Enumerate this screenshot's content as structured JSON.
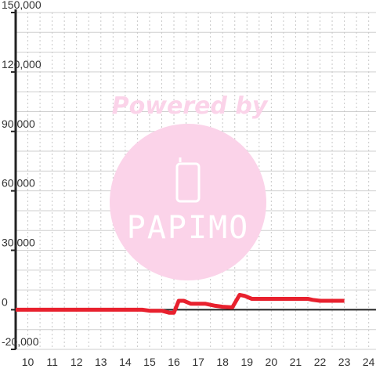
{
  "chart_data": {
    "type": "line",
    "title": "",
    "xlabel": "",
    "ylabel": "",
    "xlim": [
      9.5,
      24.3
    ],
    "ylim": [
      -20000,
      150000
    ],
    "x_ticks": [
      10,
      11,
      12,
      13,
      14,
      15,
      16,
      17,
      18,
      19,
      20,
      21,
      22,
      23,
      24
    ],
    "y_ticks": [
      -20000,
      0,
      30000,
      60000,
      90000,
      120000,
      150000
    ],
    "y_tick_labels": [
      "-20,000",
      "0",
      "30,000",
      "60,000",
      "90,000",
      "120,000",
      "150,000"
    ],
    "grid": {
      "vertical": "dotted",
      "horizontal": "solid"
    },
    "legend": "none",
    "series": [
      {
        "color": "#e8212e",
        "points": [
          [
            9.5,
            0
          ],
          [
            10,
            0
          ],
          [
            11,
            0
          ],
          [
            12,
            0
          ],
          [
            13,
            0
          ],
          [
            14,
            0
          ],
          [
            14.7,
            0
          ],
          [
            15.0,
            -500
          ],
          [
            15.5,
            -500
          ],
          [
            15.8,
            -1500
          ],
          [
            16.0,
            -1500
          ],
          [
            16.2,
            4500
          ],
          [
            16.4,
            4500
          ],
          [
            16.7,
            3000
          ],
          [
            17.3,
            3000
          ],
          [
            17.7,
            2000
          ],
          [
            18.0,
            1500
          ],
          [
            18.4,
            1200
          ],
          [
            18.7,
            7500
          ],
          [
            18.9,
            7000
          ],
          [
            19.2,
            5500
          ],
          [
            21.5,
            5500
          ],
          [
            21.7,
            5000
          ],
          [
            22.0,
            4500
          ],
          [
            23.0,
            4500
          ]
        ]
      }
    ]
  },
  "watermark": {
    "line1": "Powered by",
    "brand": "PAPIMO",
    "color": "#fbd3e9"
  }
}
